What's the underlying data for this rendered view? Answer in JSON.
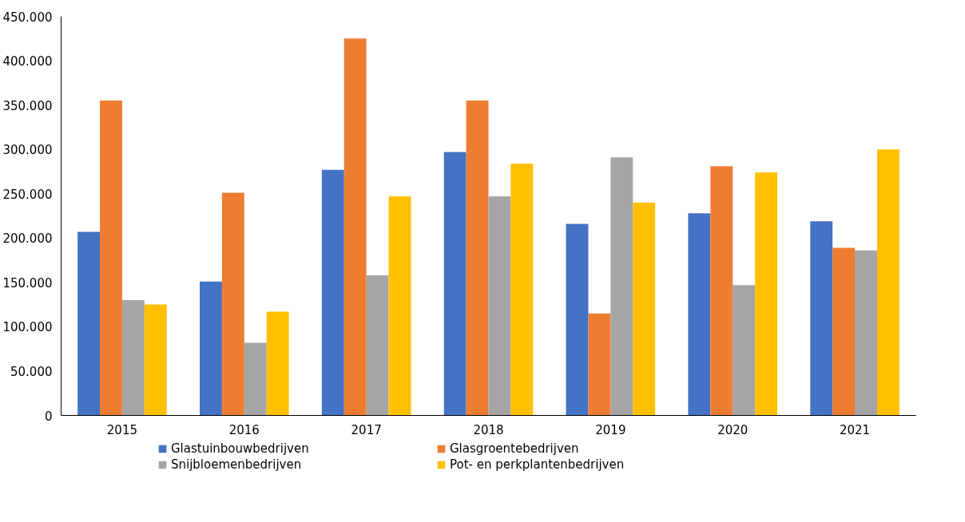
{
  "chart_data": {
    "type": "bar",
    "categories": [
      "2015",
      "2016",
      "2017",
      "2018",
      "2019",
      "2020",
      "2021"
    ],
    "series": [
      {
        "name": "Glastuinbouwbedrijven",
        "color": "#4472c4",
        "values": [
          207000,
          151000,
          277000,
          297000,
          216000,
          228000,
          219000
        ]
      },
      {
        "name": "Glasgroentebedrijven",
        "color": "#ed7d31",
        "values": [
          355000,
          251000,
          425000,
          355000,
          115000,
          281000,
          189000
        ]
      },
      {
        "name": "Snijbloemenbedrijven",
        "color": "#a5a5a5",
        "values": [
          130000,
          82000,
          158000,
          247000,
          291000,
          147000,
          186000
        ]
      },
      {
        "name": "Pot- en perkplantenbedrijven",
        "color": "#ffc000",
        "values": [
          125000,
          117000,
          247000,
          284000,
          240000,
          274000,
          300000
        ]
      }
    ],
    "ylim": [
      0,
      450000
    ],
    "yticks": [
      0,
      {
        "value": 50000,
        "label": "50.000"
      },
      {
        "value": 100000,
        "label": "100.000"
      },
      {
        "value": 150000,
        "label": "150.000"
      },
      {
        "value": 200000,
        "label": "200.000"
      },
      {
        "value": 250000,
        "label": "250.000"
      },
      {
        "value": 300000,
        "label": "300.000"
      },
      {
        "value": 350000,
        "label": "350.000"
      },
      {
        "value": 400000,
        "label": "400.000"
      },
      {
        "value": 450000,
        "label": "450.000"
      }
    ],
    "grid": false,
    "legend": "bottom"
  }
}
